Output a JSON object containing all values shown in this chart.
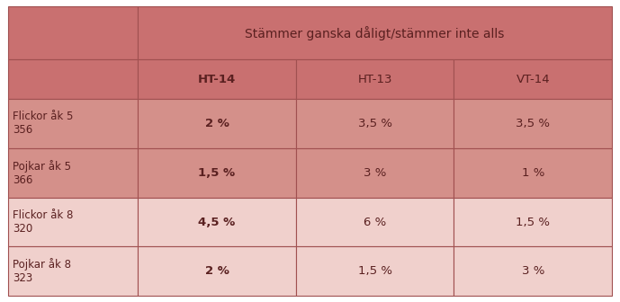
{
  "title": "Stämmer ganska dåligt/stämmer inte alls",
  "col_headers": [
    "HT-14",
    "HT-13",
    "VT-14"
  ],
  "row_labels": [
    "Flickor åk 5\n356",
    "Pojkar åk 5\n366",
    "Flickor åk 8\n320",
    "Pojkar åk 8\n323"
  ],
  "data": [
    [
      "2 %",
      "3,5 %",
      "3,5 %"
    ],
    [
      "1,5 %",
      "3 %",
      "1 %"
    ],
    [
      "4,5 %",
      "6 %",
      "1,5 %"
    ],
    [
      "2 %",
      "1,5 %",
      "3 %"
    ]
  ],
  "color_header_dark": "#C97070",
  "color_row_medium": "#D4908A",
  "color_row_light": "#F0D0CC",
  "color_border": "#A05050",
  "text_color": "#5A2020",
  "figsize": [
    6.89,
    3.36
  ],
  "dpi": 100
}
